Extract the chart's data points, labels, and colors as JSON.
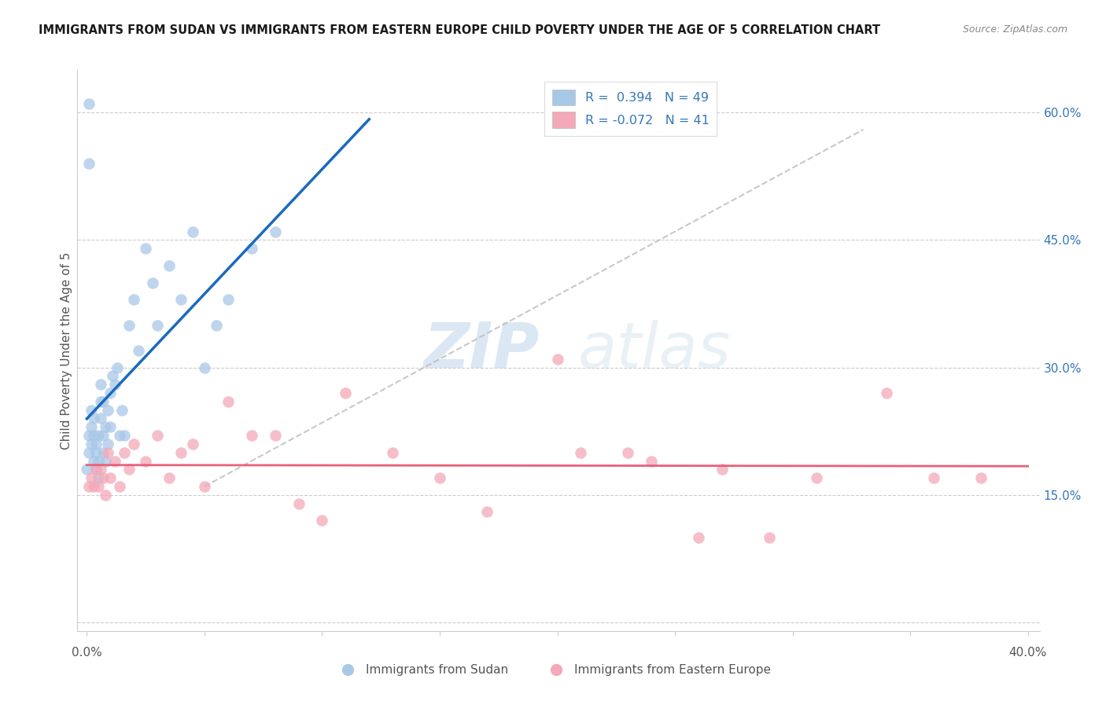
{
  "title": "IMMIGRANTS FROM SUDAN VS IMMIGRANTS FROM EASTERN EUROPE CHILD POVERTY UNDER THE AGE OF 5 CORRELATION CHART",
  "source": "Source: ZipAtlas.com",
  "ylabel": "Child Poverty Under the Age of 5",
  "sudan_color": "#a8c8e8",
  "eastern_europe_color": "#f4a8b8",
  "sudan_line_color": "#1a6abf",
  "eastern_europe_line_color": "#e8607a",
  "watermark_zip": "ZIP",
  "watermark_atlas": "atlas",
  "R1": "0.394",
  "N1": "49",
  "R2": "-0.072",
  "N2": "41",
  "legend_color1": "#4488cc",
  "legend_color2": "#e8607a",
  "sudan_x": [
    0.0,
    0.001,
    0.001,
    0.002,
    0.002,
    0.002,
    0.003,
    0.003,
    0.003,
    0.004,
    0.004,
    0.004,
    0.005,
    0.005,
    0.005,
    0.006,
    0.006,
    0.006,
    0.007,
    0.007,
    0.007,
    0.008,
    0.008,
    0.009,
    0.009,
    0.01,
    0.01,
    0.011,
    0.012,
    0.013,
    0.014,
    0.015,
    0.016,
    0.018,
    0.02,
    0.022,
    0.025,
    0.028,
    0.03,
    0.035,
    0.04,
    0.045,
    0.05,
    0.055,
    0.06,
    0.07,
    0.001,
    0.001,
    0.08
  ],
  "sudan_y": [
    0.18,
    0.2,
    0.22,
    0.21,
    0.23,
    0.25,
    0.19,
    0.22,
    0.24,
    0.18,
    0.2,
    0.21,
    0.17,
    0.19,
    0.22,
    0.24,
    0.26,
    0.28,
    0.2,
    0.22,
    0.26,
    0.19,
    0.23,
    0.21,
    0.25,
    0.23,
    0.27,
    0.29,
    0.28,
    0.3,
    0.22,
    0.25,
    0.22,
    0.35,
    0.38,
    0.32,
    0.44,
    0.4,
    0.35,
    0.42,
    0.38,
    0.46,
    0.3,
    0.35,
    0.38,
    0.44,
    0.54,
    0.61,
    0.46
  ],
  "ee_x": [
    0.001,
    0.002,
    0.003,
    0.004,
    0.005,
    0.006,
    0.007,
    0.008,
    0.009,
    0.01,
    0.012,
    0.014,
    0.016,
    0.018,
    0.02,
    0.025,
    0.03,
    0.035,
    0.04,
    0.045,
    0.05,
    0.06,
    0.07,
    0.08,
    0.09,
    0.1,
    0.11,
    0.13,
    0.15,
    0.17,
    0.2,
    0.21,
    0.23,
    0.24,
    0.26,
    0.27,
    0.29,
    0.31,
    0.34,
    0.36,
    0.38
  ],
  "ee_y": [
    0.16,
    0.17,
    0.16,
    0.18,
    0.16,
    0.18,
    0.17,
    0.15,
    0.2,
    0.17,
    0.19,
    0.16,
    0.2,
    0.18,
    0.21,
    0.19,
    0.22,
    0.17,
    0.2,
    0.21,
    0.16,
    0.26,
    0.22,
    0.22,
    0.14,
    0.12,
    0.27,
    0.2,
    0.17,
    0.13,
    0.31,
    0.2,
    0.2,
    0.19,
    0.1,
    0.18,
    0.1,
    0.17,
    0.27,
    0.17,
    0.17
  ],
  "xlim": [
    0.0,
    0.4
  ],
  "ylim": [
    0.0,
    0.65
  ],
  "yticks": [
    0.0,
    0.15,
    0.3,
    0.45,
    0.6
  ],
  "xtick_positions": [
    0.0,
    0.05,
    0.1,
    0.15,
    0.2,
    0.25,
    0.3,
    0.35,
    0.4
  ]
}
